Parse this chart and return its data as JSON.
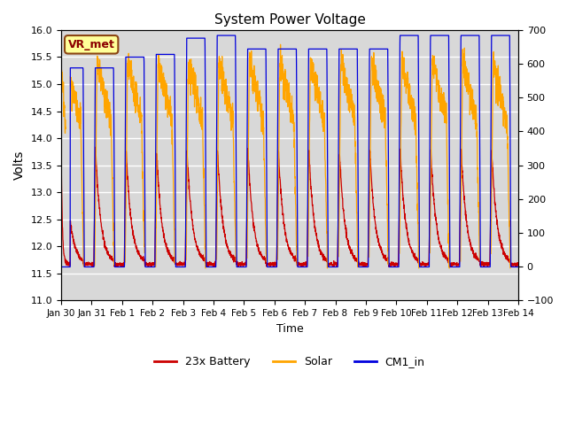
{
  "title": "System Power Voltage",
  "xlabel": "Time",
  "ylabel": "Volts",
  "ylim_left": [
    11.0,
    16.0
  ],
  "ylim_right": [
    -100,
    700
  ],
  "yticks_left": [
    11.0,
    11.5,
    12.0,
    12.5,
    13.0,
    13.5,
    14.0,
    14.5,
    15.0,
    15.5,
    16.0
  ],
  "yticks_right": [
    -100,
    0,
    100,
    200,
    300,
    400,
    500,
    600,
    700
  ],
  "xtick_labels": [
    "Jan 30",
    "Jan 31",
    "Feb 1",
    "Feb 2",
    "Feb 3",
    "Feb 4",
    "Feb 5",
    "Feb 6",
    "Feb 7",
    "Feb 8",
    "Feb 9",
    "Feb 10",
    "Feb 11",
    "Feb 12",
    "Feb 13",
    "Feb 14"
  ],
  "annotation_text": "VR_met",
  "annotation_color": "#8B0000",
  "annotation_bg": "#FFFF99",
  "annotation_border": "#8B4513",
  "bg_color": "#D8D8D8",
  "line_colors": {
    "battery": "#CC0000",
    "solar": "#FFA500",
    "cm1": "#0000DD"
  },
  "legend_labels": [
    "23x Battery",
    "Solar",
    "CM1_in"
  ]
}
